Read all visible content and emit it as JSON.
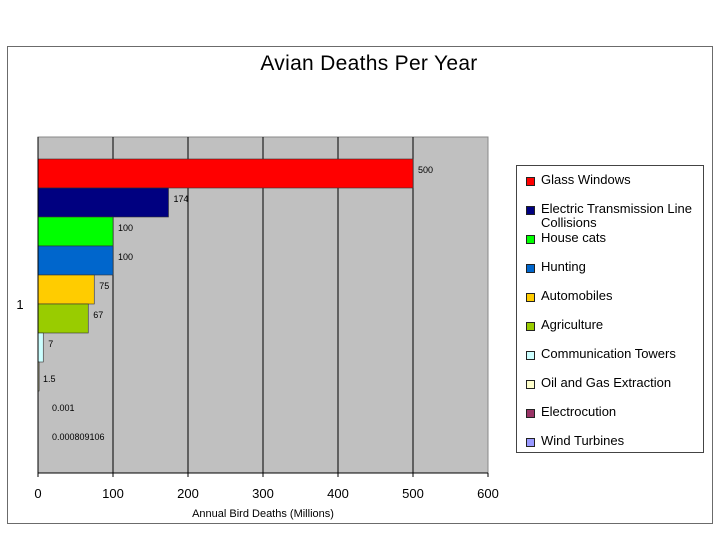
{
  "chart_data": {
    "type": "bar",
    "orientation": "horizontal",
    "title": "Avian Deaths Per Year",
    "xlabel": "Annual Bird Deaths (Millions)",
    "ylabel": "",
    "category_label": "1",
    "xlim": [
      0,
      600
    ],
    "xticks": [
      "0",
      "100",
      "200",
      "300",
      "400",
      "500",
      "600"
    ],
    "grid": "vertical",
    "legend_position": "right",
    "plot_background": "#c0c0c0",
    "series": [
      {
        "name": "Glass Windows",
        "value": 500,
        "label": "500",
        "color": "#ff0000"
      },
      {
        "name": "Electric Transmission Line Collisions",
        "value": 174,
        "label": "174",
        "color": "#000080"
      },
      {
        "name": "House cats",
        "value": 100,
        "label": "100",
        "color": "#00ff00"
      },
      {
        "name": "Hunting",
        "value": 100,
        "label": "100",
        "color": "#0066cc"
      },
      {
        "name": "Automobiles",
        "value": 75,
        "label": "75",
        "color": "#ffcc00"
      },
      {
        "name": "Agriculture",
        "value": 67,
        "label": "67",
        "color": "#99cc00"
      },
      {
        "name": "Communication Towers",
        "value": 7,
        "label": "7",
        "color": "#ccffff"
      },
      {
        "name": "Oil and Gas Extraction",
        "value": 1.5,
        "label": "1.5",
        "color": "#ffffcc"
      },
      {
        "name": "Electrocution",
        "value": 0.001,
        "label": "0.001",
        "color": "#993366"
      },
      {
        "name": "Wind Turbines",
        "value": 0.000809106,
        "label": "0.000809106",
        "color": "#9999ff"
      }
    ]
  }
}
